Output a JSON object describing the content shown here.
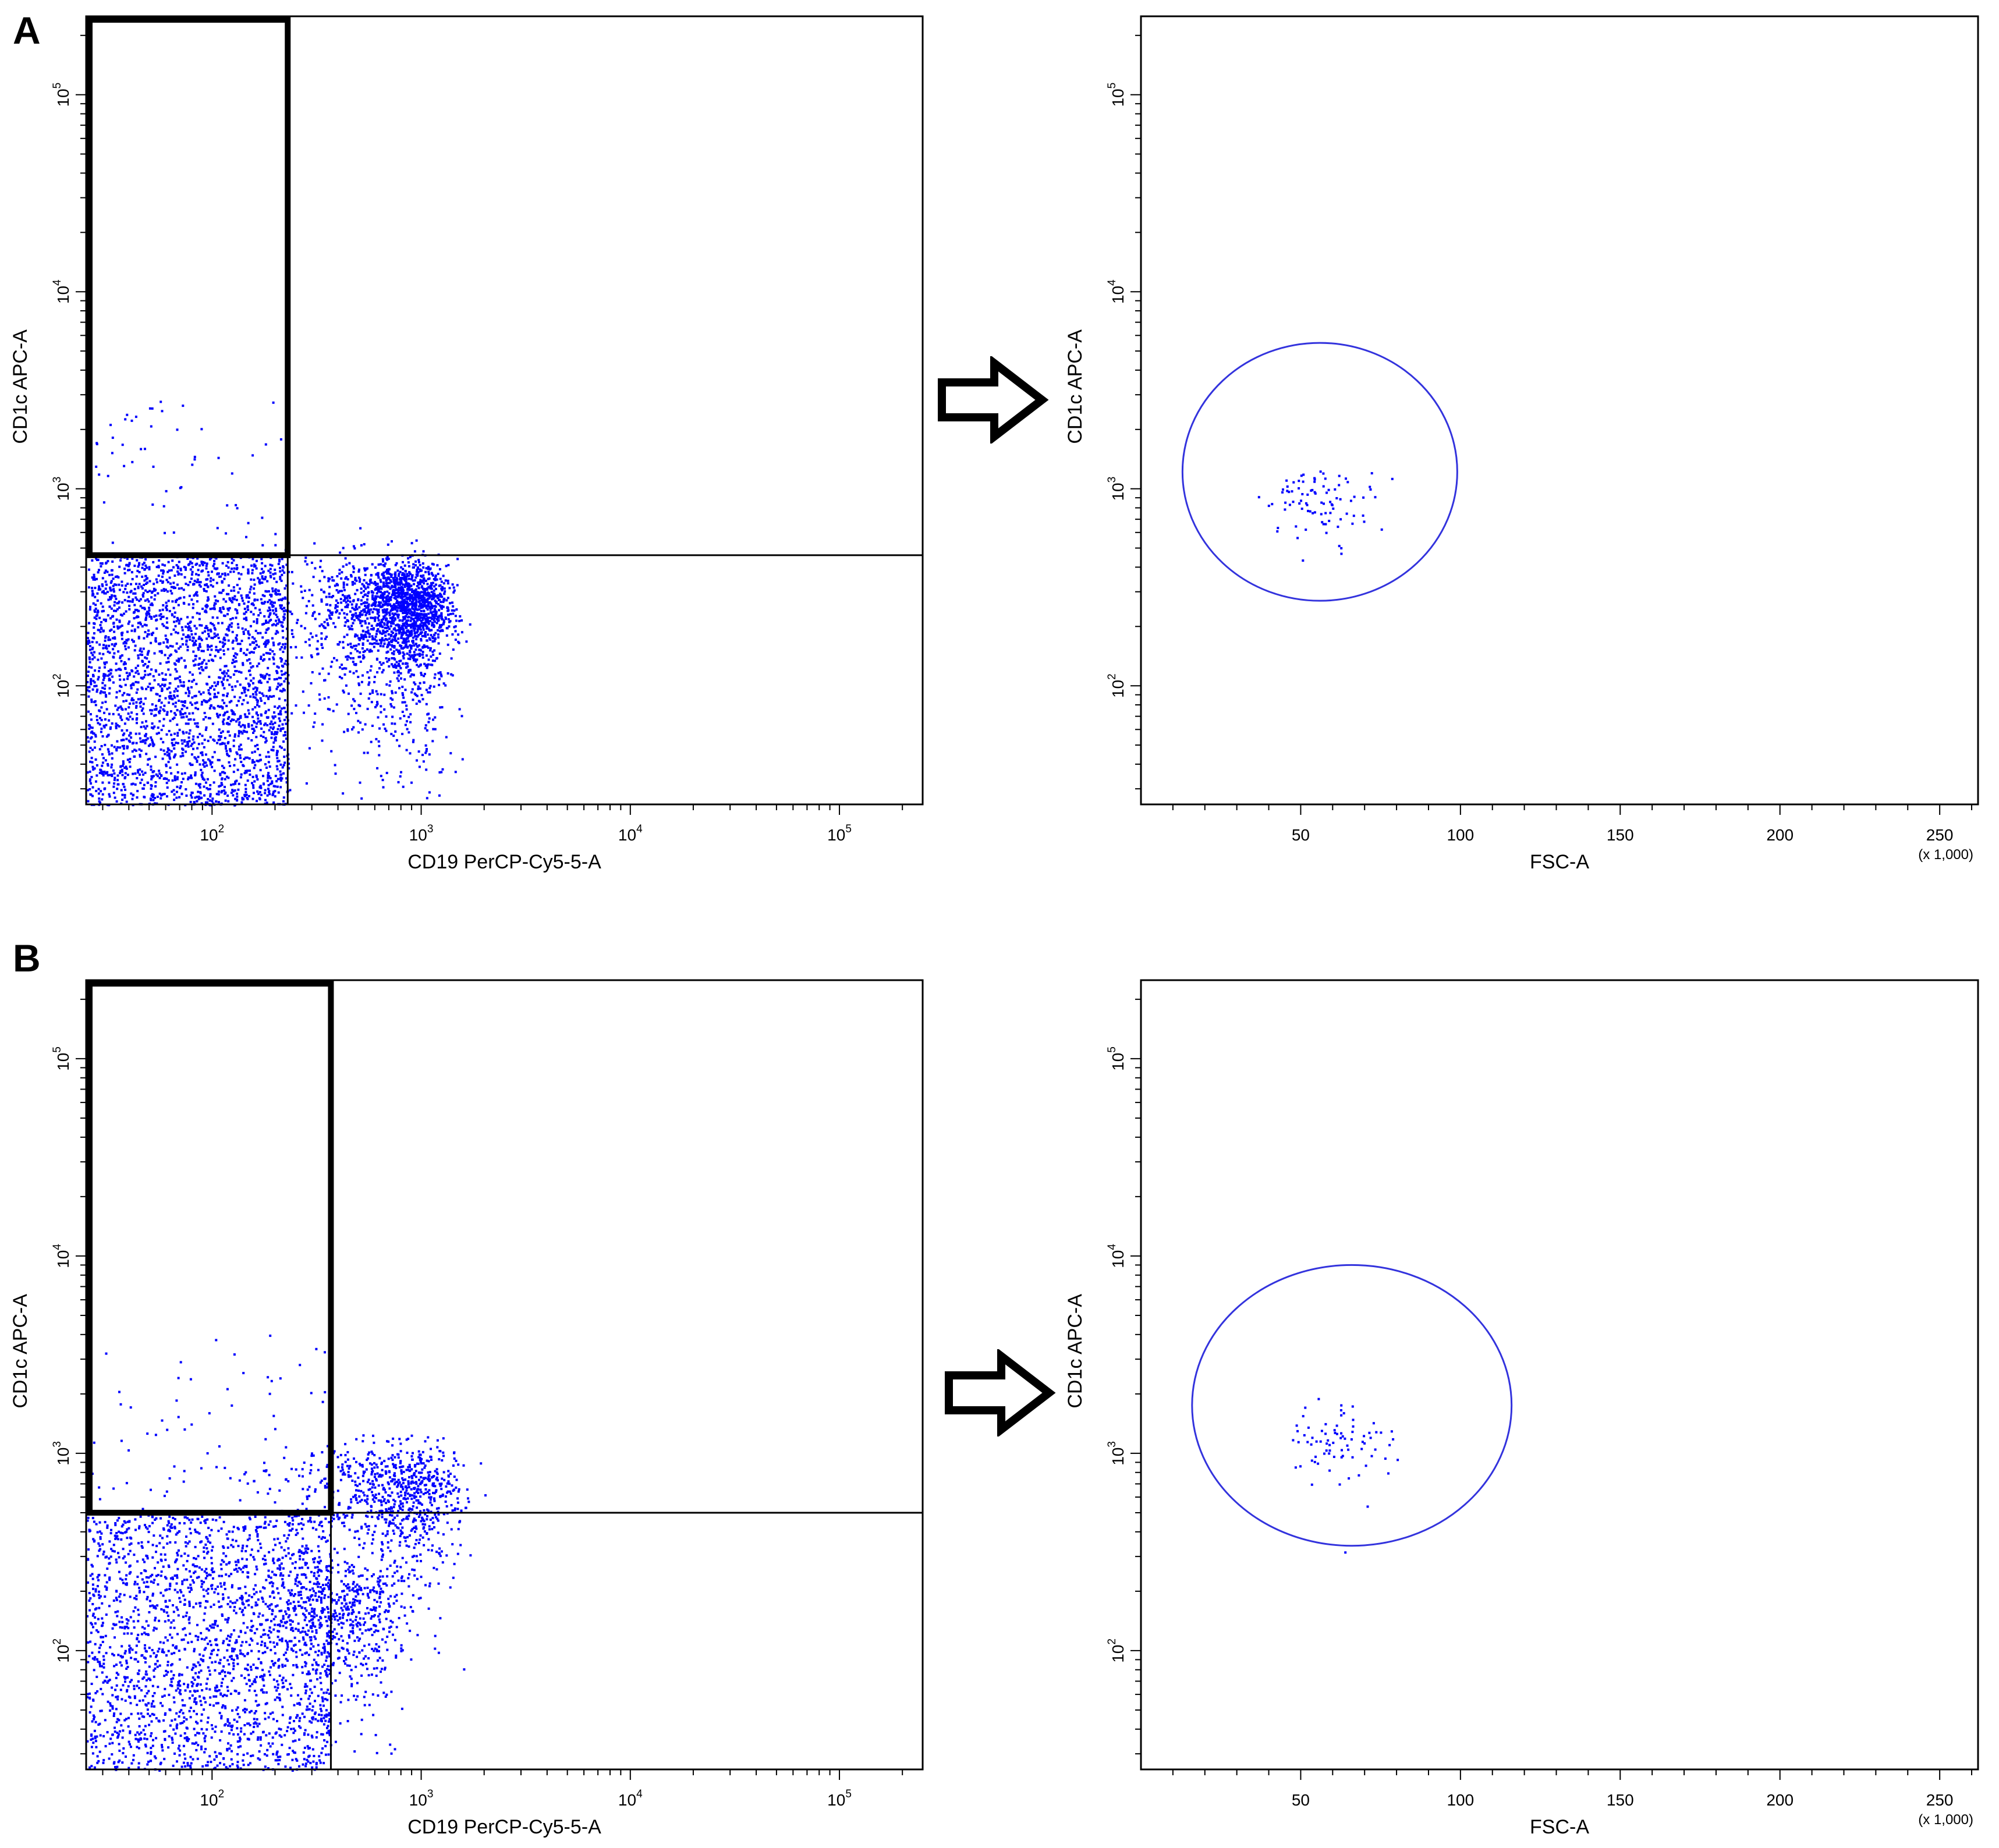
{
  "colors": {
    "points": "#0000ff",
    "gate_ellipse": "#3333dd",
    "axis": "#000000",
    "gate_rect": "#000000"
  },
  "icons": {
    "flow_arrow": "hollow-right-arrow-icon"
  },
  "panels": [
    {
      "letter": "A"
    },
    {
      "letter": "B"
    }
  ],
  "chart_data": [
    {
      "panel": "A",
      "type": "scatter",
      "title": "",
      "xlabel": "CD19 PerCP-Cy5-5-A",
      "ylabel": "CD1c APC-A",
      "x_scale": "log",
      "y_scale": "log",
      "xlim": [
        25,
        250000
      ],
      "ylim": [
        25,
        250000
      ],
      "x_ticks": [
        {
          "value": 100,
          "label": "10",
          "exp": "2"
        },
        {
          "value": 1000,
          "label": "10",
          "exp": "3"
        },
        {
          "value": 10000,
          "label": "10",
          "exp": "4"
        },
        {
          "value": 100000,
          "label": "10",
          "exp": "5"
        }
      ],
      "y_ticks": [
        {
          "value": 100,
          "label": "10",
          "exp": "2"
        },
        {
          "value": 1000,
          "label": "10",
          "exp": "3"
        },
        {
          "value": 10000,
          "label": "10",
          "exp": "4"
        },
        {
          "value": 100000,
          "label": "10",
          "exp": "5"
        }
      ],
      "quadrant_lines": {
        "x": 230,
        "y": 460
      },
      "gate": {
        "shape": "rectangle",
        "x": [
          25,
          230
        ],
        "y": [
          460,
          250000
        ]
      },
      "series": [
        {
          "clusters": [
            {
              "x": [
                25,
                230
              ],
              "y": [
                25,
                460
              ],
              "n": 2600,
              "dist": "uniform"
            },
            {
              "x": [
                800,
                250
              ],
              "y": [
                250,
                80
              ],
              "n": 1500,
              "dist": "normal"
            },
            {
              "x": [
                650,
                350
              ],
              "y": [
                110,
                160
              ],
              "n": 900,
              "dist": "normal"
            },
            {
              "x": [
                25,
                230
              ],
              "y": [
                460,
                2800
              ],
              "n": 60,
              "dist": "uniform"
            }
          ]
        }
      ]
    },
    {
      "panel": "A",
      "type": "scatter",
      "title": "",
      "xlabel": "FSC-A",
      "ylabel": "CD1c APC-A",
      "x_scale": "linear",
      "y_scale": "log",
      "xlim": [
        0,
        262
      ],
      "ylim": [
        25,
        250000
      ],
      "x_unit_label": "(x 1,000)",
      "x_ticks": [
        {
          "value": 50,
          "label": "50"
        },
        {
          "value": 100,
          "label": "100"
        },
        {
          "value": 150,
          "label": "150"
        },
        {
          "value": 200,
          "label": "200"
        },
        {
          "value": 250,
          "label": "250"
        }
      ],
      "y_ticks": [
        {
          "value": 100,
          "label": "10",
          "exp": "2"
        },
        {
          "value": 1000,
          "label": "10",
          "exp": "3"
        },
        {
          "value": 10000,
          "label": "10",
          "exp": "4"
        },
        {
          "value": 100000,
          "label": "10",
          "exp": "5"
        }
      ],
      "gate": {
        "shape": "ellipse",
        "center": [
          56,
          1250
        ],
        "x_radius": 43,
        "y_range": [
          270,
          5500
        ]
      },
      "series": [
        {
          "clusters": [
            {
              "x": [
                56,
                9
              ],
              "y": [
                900,
                170
              ],
              "n": 90,
              "dist": "normal"
            }
          ]
        }
      ]
    },
    {
      "panel": "B",
      "type": "scatter",
      "title": "",
      "xlabel": "CD19 PerCP-Cy5-5-A",
      "ylabel": "CD1c APC-A",
      "x_scale": "log",
      "y_scale": "log",
      "xlim": [
        25,
        250000
      ],
      "ylim": [
        25,
        250000
      ],
      "x_ticks": [
        {
          "value": 100,
          "label": "10",
          "exp": "2"
        },
        {
          "value": 1000,
          "label": "10",
          "exp": "3"
        },
        {
          "value": 10000,
          "label": "10",
          "exp": "4"
        },
        {
          "value": 100000,
          "label": "10",
          "exp": "5"
        }
      ],
      "y_ticks": [
        {
          "value": 100,
          "label": "10",
          "exp": "2"
        },
        {
          "value": 1000,
          "label": "10",
          "exp": "3"
        },
        {
          "value": 10000,
          "label": "10",
          "exp": "4"
        },
        {
          "value": 100000,
          "label": "10",
          "exp": "5"
        }
      ],
      "quadrant_lines": {
        "x": 370,
        "y": 500
      },
      "gate": {
        "shape": "rectangle",
        "x": [
          25,
          370
        ],
        "y": [
          500,
          250000
        ]
      },
      "series": [
        {
          "clusters": [
            {
              "x": [
                25,
                370
              ],
              "y": [
                25,
                500
              ],
              "n": 2000,
              "dist": "uniform"
            },
            {
              "x": [
                750,
                350
              ],
              "y": [
                600,
                250
              ],
              "n": 900,
              "dist": "normal"
            },
            {
              "x": [
                350,
                200
              ],
              "y": [
                140,
                60
              ],
              "n": 700,
              "dist": "normal"
            },
            {
              "x": [
                25,
                370
              ],
              "y": [
                500,
                4000
              ],
              "n": 55,
              "dist": "uniform"
            }
          ]
        }
      ]
    },
    {
      "panel": "B",
      "type": "scatter",
      "title": "",
      "xlabel": "FSC-A",
      "ylabel": "CD1c APC-A",
      "x_scale": "linear",
      "y_scale": "log",
      "xlim": [
        0,
        262
      ],
      "ylim": [
        25,
        250000
      ],
      "x_unit_label": "(x 1,000)",
      "x_ticks": [
        {
          "value": 50,
          "label": "50"
        },
        {
          "value": 100,
          "label": "100"
        },
        {
          "value": 150,
          "label": "150"
        },
        {
          "value": 200,
          "label": "200"
        },
        {
          "value": 250,
          "label": "250"
        }
      ],
      "y_ticks": [
        {
          "value": 100,
          "label": "10",
          "exp": "2"
        },
        {
          "value": 1000,
          "label": "10",
          "exp": "3"
        },
        {
          "value": 10000,
          "label": "10",
          "exp": "4"
        },
        {
          "value": 100000,
          "label": "10",
          "exp": "5"
        }
      ],
      "gate": {
        "shape": "ellipse",
        "center": [
          66,
          1850
        ],
        "x_radius": 50,
        "y_range": [
          340,
          9000
        ]
      },
      "series": [
        {
          "clusters": [
            {
              "x": [
                62,
                8
              ],
              "y": [
                1200,
                300
              ],
              "n": 80,
              "dist": "normal"
            }
          ]
        }
      ]
    }
  ]
}
